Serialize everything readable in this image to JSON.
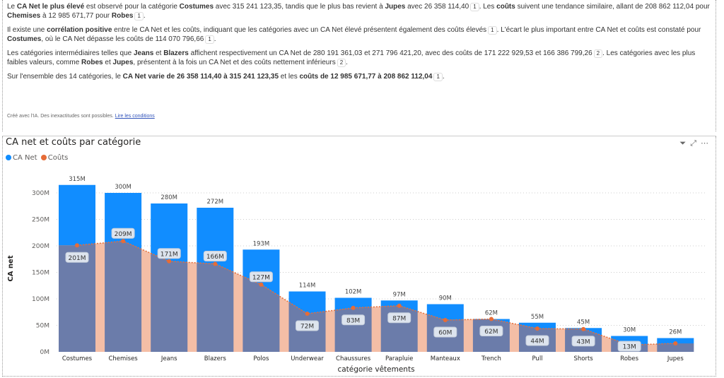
{
  "narrative": {
    "p1": [
      "Le ",
      {
        "b": "CA Net le plus élevé"
      },
      " est observé pour la catégorie ",
      {
        "b": "Costumes"
      },
      " avec 315 241 123,35, tandis que le plus bas revient à ",
      {
        "b": "Jupes"
      },
      " avec 26 358 114,40",
      {
        "r": "1"
      },
      ". Les ",
      {
        "b": "coûts"
      },
      " suivent une tendance similaire, allant de 208 862 112,04 pour ",
      {
        "b": "Chemises"
      },
      " à 12 985 671,77 pour ",
      {
        "b": "Robes"
      },
      {
        "r": "1"
      },
      "."
    ],
    "p2": [
      "Il existe une ",
      {
        "b": "corrélation positive"
      },
      " entre le CA Net et les coûts, indiquant que les catégories avec un CA Net élevé présentent également des coûts élevés",
      {
        "r": "1"
      },
      ". L'écart le plus important entre CA Net et coûts est constaté pour ",
      {
        "b": "Costumes"
      },
      ", où le CA Net dépasse les coûts de 114 070 796,66",
      {
        "r": "1"
      },
      "."
    ],
    "p3": [
      "Les catégories intermédiaires telles que ",
      {
        "b": "Jeans"
      },
      " et ",
      {
        "b": "Blazers"
      },
      " affichent respectivement un CA Net de 280 191 361,03 et 271 796 421,20, avec des coûts de 171 222 929,53 et 166 386 799,26",
      {
        "r": "2"
      },
      ". Les catégories avec les plus faibles valeurs, comme ",
      {
        "b": "Robes"
      },
      " et ",
      {
        "b": "Jupes"
      },
      ", présentent à la fois un CA Net et des coûts nettement inférieurs",
      {
        "r": "2"
      },
      "."
    ],
    "p4": [
      "Sur l'ensemble des 14 catégories, le ",
      {
        "b": "CA Net varie de 26 358 114,40 à 315 241 123,35"
      },
      " et les ",
      {
        "b": "coûts de 12 985 671,77 à 208 862 112,04"
      },
      {
        "r": "1"
      },
      "."
    ],
    "footer": "Créé avec l'IA. Des inexactitudes sont possibles.",
    "footer_link": "Lire les conditions"
  },
  "icons": [
    "filter-icon",
    "focus-mode-icon",
    "more-options-icon"
  ],
  "chart_data": {
    "type": "bar+area",
    "title": "CA net et coûts par catégorie",
    "xlabel": "catégorie vêtements",
    "ylabel": "CA net",
    "ylim": [
      0,
      330
    ],
    "yticks": [
      "0M",
      "50M",
      "100M",
      "150M",
      "200M",
      "250M",
      "300M"
    ],
    "legend_position": "top-left",
    "categories": [
      "Costumes",
      "Chemises",
      "Jeans",
      "Blazers",
      "Polos",
      "Underwear",
      "Chaussures",
      "Parapluie",
      "Manteaux",
      "Trench",
      "Pull",
      "Shorts",
      "Robes",
      "Jupes"
    ],
    "series": [
      {
        "name": "CA Net",
        "type": "bar",
        "color": "#118DFF",
        "values": [
          315,
          300,
          280,
          272,
          193,
          114,
          102,
          97,
          90,
          62,
          55,
          45,
          30,
          26
        ],
        "labels": [
          "315M",
          "300M",
          "280M",
          "272M",
          "193M",
          "114M",
          "102M",
          "97M",
          "90M",
          "62M",
          "55M",
          "45M",
          "30M",
          "26M"
        ]
      },
      {
        "name": "Coûts",
        "type": "area",
        "color": "#E66C37",
        "values": [
          201,
          209,
          171,
          166,
          127,
          72,
          83,
          87,
          60,
          62,
          44,
          43,
          13,
          16
        ],
        "labels": [
          "201M",
          "209M",
          "171M",
          "166M",
          "127M",
          "72M",
          "83M",
          "87M",
          "60M",
          "62M",
          "44M",
          "43M",
          "13M",
          ""
        ]
      }
    ]
  }
}
